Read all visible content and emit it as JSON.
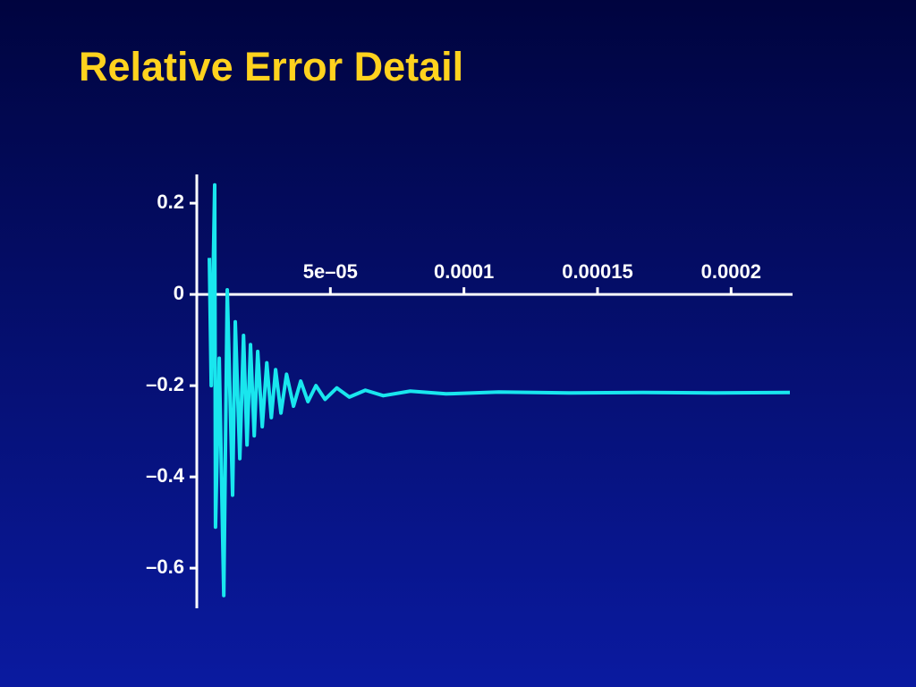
{
  "chart_data": {
    "type": "line",
    "title": "Relative Error Detail",
    "x": [
      4.7e-06,
      5.4e-06,
      6.7e-06,
      7e-06,
      8.4e-06,
      1.01e-05,
      1.14e-05,
      1.34e-05,
      1.44e-05,
      1.61e-05,
      1.75e-05,
      1.88e-05,
      2.01e-05,
      2.15e-05,
      2.28e-05,
      2.45e-05,
      2.62e-05,
      2.79e-05,
      2.95e-05,
      3.15e-05,
      3.36e-05,
      3.62e-05,
      3.89e-05,
      4.16e-05,
      4.46e-05,
      4.8e-05,
      5.24e-05,
      5.71e-05,
      6.31e-05,
      6.98e-05,
      7.99e-05,
      9.33e-05,
      0.000113,
      0.00014,
      0.000167,
      0.000194,
      0.000222
    ],
    "series": [
      {
        "color": "#19e6ee",
        "values": [
          0.08,
          -0.2,
          0.24,
          -0.51,
          -0.14,
          -0.66,
          0.01,
          -0.44,
          -0.06,
          -0.36,
          -0.09,
          -0.33,
          -0.11,
          -0.31,
          -0.125,
          -0.29,
          -0.15,
          -0.27,
          -0.165,
          -0.26,
          -0.175,
          -0.245,
          -0.19,
          -0.235,
          -0.2,
          -0.23,
          -0.205,
          -0.225,
          -0.21,
          -0.222,
          -0.212,
          -0.218,
          -0.214,
          -0.216,
          -0.215,
          -0.216,
          -0.215
        ]
      }
    ],
    "xlim": [
      0,
      0.000222
    ],
    "ylim": [
      -0.688,
      0.263
    ],
    "xticks": [
      {
        "value": 5e-05,
        "label": "5e–05"
      },
      0.0001,
      0.00015,
      0.0002
    ],
    "yticks": [
      0.2,
      0,
      {
        "value": -0.2,
        "label": "–0.2"
      },
      {
        "value": -0.4,
        "label": "–0.4"
      },
      {
        "value": -0.6,
        "label": "–0.6"
      }
    ],
    "grid": false
  }
}
